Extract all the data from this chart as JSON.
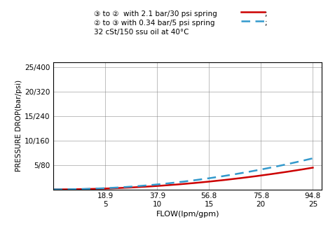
{
  "title_line1": "③ to ②  with 2.1 bar/30 psi spring —;",
  "title_line2": "② to ③ with 0.34 bar/5 psi spring ––;",
  "title_line3": "32 cSt/150 ssu oil at 40°C",
  "xlabel": "FLOW(lpm/gpm)",
  "ylabel": "PRESSURE DROP(bar/psi)",
  "x_ticks_lpm": [
    18.9,
    37.9,
    56.8,
    75.8,
    94.8
  ],
  "x_ticks_gpm": [
    5,
    10,
    15,
    20,
    25
  ],
  "y_ticks_bar": [
    5,
    10,
    15,
    20,
    25
  ],
  "y_ticks_psi": [
    80,
    160,
    240,
    320,
    400
  ],
  "xlim": [
    0,
    98
  ],
  "ylim": [
    0,
    26
  ],
  "color_red": "#cc0000",
  "color_blue": "#3399cc",
  "curve1_x_lpm": [
    0,
    5,
    10,
    15,
    20,
    25,
    30,
    35,
    40,
    45,
    50,
    55,
    60,
    65,
    70,
    75,
    80,
    85,
    90,
    94.8
  ],
  "curve1_y_bar": [
    0.0,
    0.02,
    0.05,
    0.1,
    0.17,
    0.26,
    0.38,
    0.52,
    0.68,
    0.87,
    1.08,
    1.32,
    1.6,
    1.92,
    2.27,
    2.67,
    3.12,
    3.62,
    4.18,
    4.8
  ],
  "curve2_x_lpm": [
    0,
    5,
    10,
    15,
    20,
    25,
    30,
    35,
    40,
    45,
    50,
    55,
    60,
    65,
    70,
    75,
    80,
    85,
    90,
    94.8
  ],
  "curve2_y_bar": [
    0.0,
    0.03,
    0.07,
    0.14,
    0.23,
    0.35,
    0.51,
    0.7,
    0.93,
    1.2,
    1.51,
    1.87,
    2.27,
    2.73,
    3.25,
    3.83,
    4.48,
    5.2,
    6.0,
    6.85
  ]
}
